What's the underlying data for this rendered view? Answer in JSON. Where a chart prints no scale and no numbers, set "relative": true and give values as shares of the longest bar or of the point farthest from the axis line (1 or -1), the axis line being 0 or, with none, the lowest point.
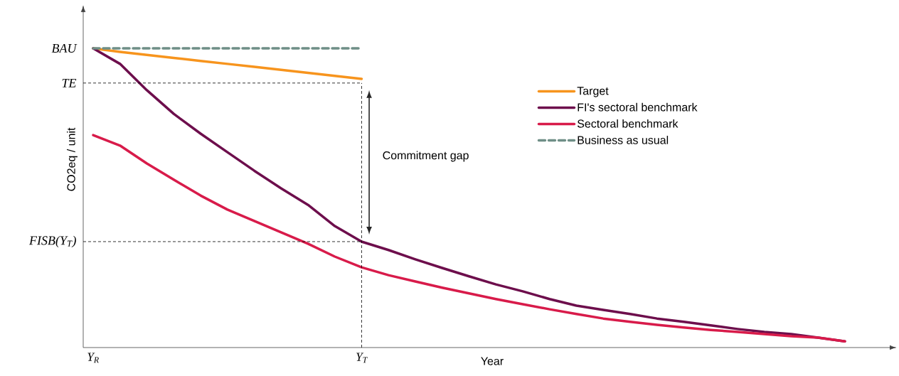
{
  "chart_data": {
    "type": "line",
    "relative": true,
    "xlabel": "Year",
    "ylabel": "CO2eq / unit",
    "categories": [
      "Y$_{R}$",
      null,
      null,
      null,
      null,
      null,
      null,
      null,
      null,
      null,
      "Y$_{T}$",
      null,
      null,
      null,
      null,
      null,
      null,
      null,
      null,
      null,
      null,
      null,
      null,
      null,
      null,
      null,
      null,
      null,
      null
    ],
    "series": [
      {
        "name": "Target",
        "color": "#f7941d",
        "values": [
          1.0,
          0.988,
          0.978,
          0.968,
          0.958,
          0.948,
          0.938,
          0.928,
          0.918,
          0.908,
          0.898,
          null,
          null,
          null,
          null,
          null,
          null,
          null,
          null,
          null,
          null,
          null,
          null,
          null,
          null,
          null,
          null,
          null,
          null
        ]
      },
      {
        "name": "FI's sectoral benchmark",
        "color": "#6d0e4c",
        "values": [
          1.0,
          0.948,
          0.86,
          0.781,
          0.715,
          0.653,
          0.591,
          0.532,
          0.477,
          0.406,
          0.354,
          0.326,
          0.295,
          0.266,
          0.238,
          0.211,
          0.188,
          0.162,
          0.14,
          0.126,
          0.112,
          0.097,
          0.086,
          0.074,
          0.062,
          0.052,
          0.045,
          0.033,
          0.021
        ]
      },
      {
        "name": "Sectoral benchmark",
        "color": "#d81b4a",
        "values": [
          0.71,
          0.675,
          0.615,
          0.561,
          0.508,
          0.461,
          0.423,
          0.385,
          0.347,
          0.304,
          0.268,
          0.242,
          0.221,
          0.2,
          0.181,
          0.162,
          0.145,
          0.128,
          0.112,
          0.097,
          0.086,
          0.076,
          0.067,
          0.059,
          0.052,
          0.045,
          0.038,
          0.033,
          0.021
        ]
      },
      {
        "name": "Business as usual",
        "color": "#6f8f87",
        "line_style": "dashed",
        "values": [
          1.0,
          1.0,
          1.0,
          1.0,
          1.0,
          1.0,
          1.0,
          1.0,
          1.0,
          1.0,
          1.0,
          null,
          null,
          null,
          null,
          null,
          null,
          null,
          null,
          null,
          null,
          null,
          null,
          null,
          null,
          null,
          null,
          null,
          null
        ]
      }
    ],
    "ref_lines": [
      {
        "axis": "y",
        "value": 0.884,
        "label": "TE",
        "line_style": "dashed",
        "color": "#000000"
      },
      {
        "axis": "y",
        "value": 0.354,
        "label": "FISB(Y$_{T}$)",
        "line_style": "dashed",
        "color": "#000000"
      },
      {
        "axis": "x",
        "value": "Y$_{T}$",
        "line_style": "dashed",
        "color": "#000000"
      }
    ],
    "annotations": [
      "BAU",
      "Commitment gap"
    ],
    "legend": "right",
    "grid": false,
    "marker": "none"
  }
}
